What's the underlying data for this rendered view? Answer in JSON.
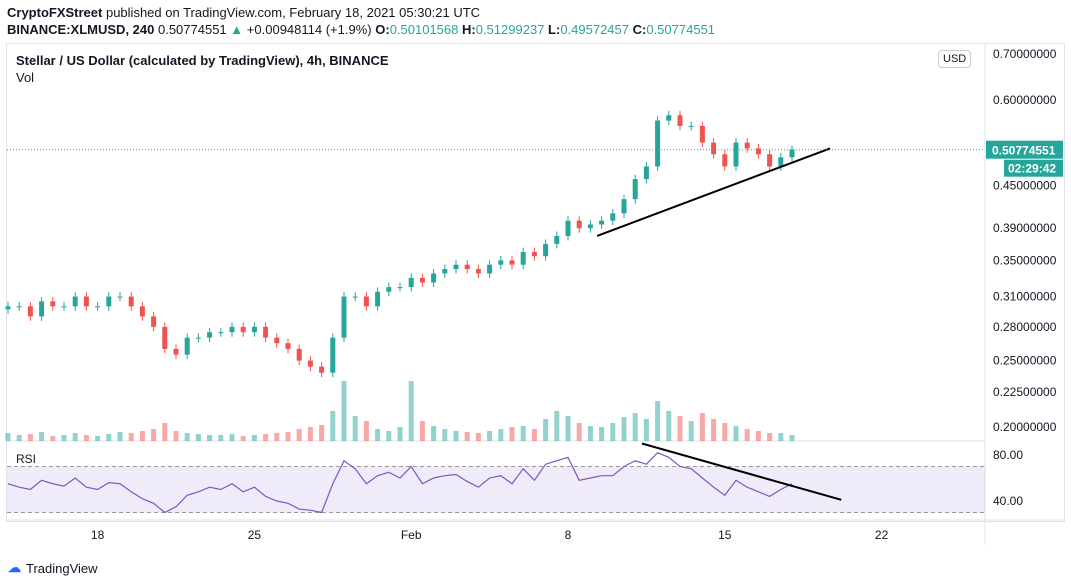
{
  "header": {
    "publisher": "CryptoFXStreet",
    "published": " published on TradingView.com, February 18, 2021 05:30:21 UTC",
    "symbol": "BINANCE:XLMUSD, 240",
    "last": "0.50774551",
    "arrow": "▲",
    "change": "+0.00948114 (+1.9%)",
    "o_label": "O:",
    "o": "0.50101568",
    "h_label": "H:",
    "h": "0.51299237",
    "l_label": "L:",
    "l": "0.49572457",
    "c_label": "C:",
    "c": "0.50774551"
  },
  "chart_data": {
    "type": "candlestick",
    "title": "Stellar / US Dollar (calculated by TradingView), 4h, BINANCE",
    "volume_label": "Vol",
    "rsi_label": "RSI",
    "currency": "USD",
    "price_ticks": [
      "0.70000000",
      "0.60000000",
      "0.45000000",
      "0.39000000",
      "0.35000000",
      "0.31000000",
      "0.28000000",
      "0.25000000",
      "0.22500000",
      "0.20000000"
    ],
    "price_tick_values": [
      0.7,
      0.6,
      0.45,
      0.39,
      0.35,
      0.31,
      0.28,
      0.25,
      0.225,
      0.2
    ],
    "rsi_ticks": [
      "80.00",
      "40.00"
    ],
    "rsi_tick_values": [
      80,
      40
    ],
    "x_ticks": [
      {
        "label": "18",
        "day": 4
      },
      {
        "label": "25",
        "day": 11
      },
      {
        "label": "Feb",
        "day": 18
      },
      {
        "label": "8",
        "day": 25
      },
      {
        "label": "15",
        "day": 32
      },
      {
        "label": "22",
        "day": 39
      }
    ],
    "last_price": "0.50774551",
    "countdown": "02:29:42",
    "closes": [
      0.3,
      0.3,
      0.29,
      0.305,
      0.3,
      0.3,
      0.31,
      0.3,
      0.3,
      0.31,
      0.31,
      0.3,
      0.29,
      0.28,
      0.26,
      0.255,
      0.27,
      0.27,
      0.275,
      0.275,
      0.28,
      0.275,
      0.28,
      0.27,
      0.265,
      0.26,
      0.25,
      0.245,
      0.24,
      0.27,
      0.31,
      0.31,
      0.3,
      0.315,
      0.32,
      0.32,
      0.33,
      0.325,
      0.335,
      0.34,
      0.345,
      0.34,
      0.335,
      0.345,
      0.35,
      0.345,
      0.36,
      0.355,
      0.37,
      0.38,
      0.4,
      0.39,
      0.395,
      0.4,
      0.41,
      0.43,
      0.46,
      0.48,
      0.56,
      0.57,
      0.55,
      0.55,
      0.52,
      0.5,
      0.48,
      0.52,
      0.51,
      0.5,
      0.48,
      0.495,
      0.508
    ],
    "volumes": [
      8,
      6,
      7,
      9,
      5,
      6,
      8,
      6,
      5,
      7,
      9,
      8,
      10,
      12,
      18,
      10,
      8,
      7,
      6,
      6,
      7,
      5,
      6,
      7,
      8,
      9,
      12,
      14,
      16,
      30,
      60,
      25,
      20,
      12,
      10,
      14,
      60,
      20,
      15,
      12,
      10,
      9,
      8,
      10,
      12,
      14,
      15,
      12,
      22,
      30,
      25,
      18,
      15,
      14,
      18,
      24,
      28,
      22,
      40,
      30,
      25,
      20,
      28,
      22,
      18,
      15,
      12,
      10,
      8,
      8,
      6
    ],
    "rsi": [
      55,
      52,
      50,
      58,
      55,
      53,
      60,
      52,
      50,
      56,
      55,
      48,
      42,
      38,
      30,
      35,
      45,
      48,
      52,
      50,
      55,
      48,
      52,
      44,
      40,
      38,
      33,
      32,
      30,
      55,
      75,
      68,
      55,
      62,
      65,
      60,
      70,
      55,
      60,
      62,
      63,
      57,
      52,
      60,
      62,
      55,
      68,
      58,
      72,
      75,
      78,
      58,
      60,
      62,
      62,
      70,
      75,
      72,
      82,
      78,
      70,
      68,
      60,
      52,
      45,
      58,
      52,
      48,
      44,
      50,
      55
    ],
    "trendlines": [
      {
        "pane": "price",
        "from": [
          26.3,
          0.38
        ],
        "to": [
          36.7,
          0.51
        ]
      },
      {
        "pane": "rsi",
        "from": [
          28.3,
          90
        ],
        "to": [
          37.2,
          41
        ]
      }
    ]
  },
  "footer": {
    "brand": "TradingView"
  },
  "colors": {
    "up": "#26a69a",
    "down": "#ef5350",
    "rsi": "#7e57c2"
  }
}
